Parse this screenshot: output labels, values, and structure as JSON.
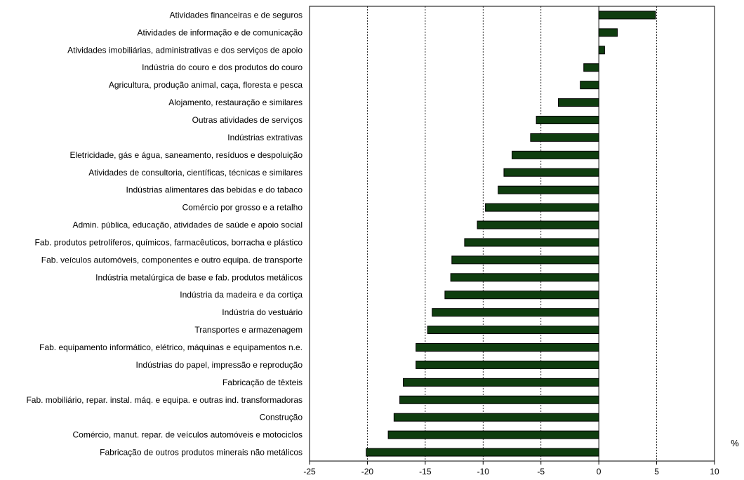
{
  "chart_data": {
    "type": "bar",
    "orientation": "horizontal",
    "categories": [
      "Atividades financeiras e de seguros",
      "Atividades de informação e de comunicação",
      "Atividades imobiliárias, administrativas e dos serviços de apoio",
      "Indústria do couro e dos produtos do couro",
      "Agricultura, produção animal, caça, floresta e pesca",
      "Alojamento, restauração e similares",
      "Outras atividades de serviços",
      "Indústrias extrativas",
      "Eletricidade, gás e água, saneamento, resíduos e despoluição",
      "Atividades de consultoria, científicas, técnicas e similares",
      "Indústrias alimentares das bebidas e do tabaco",
      "Comércio por grosso e a retalho",
      "Admin. pública, educação, atividades de saúde e apoio social",
      "Fab. produtos petrolíferos, químicos, farmacêuticos, borracha e plástico",
      "Fab. veículos automóveis, componentes e outro equipa. de transporte",
      "Indústria metalúrgica de base e fab. produtos metálicos",
      "Indústria da madeira e da cortiça",
      "Indústria do vestuário",
      "Transportes e armazenagem",
      "Fab. equipamento informático, elétrico, máquinas e equipamentos n.e.",
      "Indústrias do papel, impressão e reprodução",
      "Fabricação de têxteis",
      "Fab. mobiliário, repar. instal. máq. e equipa. e outras ind. transformadoras",
      "Construção",
      "Comércio, manut. repar. de veículos automóveis e motociclos",
      "Fabricação de outros produtos minerais não metálicos"
    ],
    "values": [
      4.9,
      1.6,
      0.5,
      -1.3,
      -1.6,
      -3.5,
      -5.4,
      -5.9,
      -7.5,
      -8.2,
      -8.7,
      -9.8,
      -10.5,
      -11.6,
      -12.7,
      -12.8,
      -13.3,
      -14.4,
      -14.8,
      -15.8,
      -15.8,
      -16.9,
      -17.2,
      -17.7,
      -18.2,
      -20.1
    ],
    "xlim": [
      -25,
      10
    ],
    "xticks": [
      "-25",
      "-20",
      "-15",
      "-10",
      "-5",
      "0",
      "5",
      "10"
    ],
    "xlabel": "%",
    "grid": "vertical dashed",
    "bar_color": "#0f3d0f"
  }
}
